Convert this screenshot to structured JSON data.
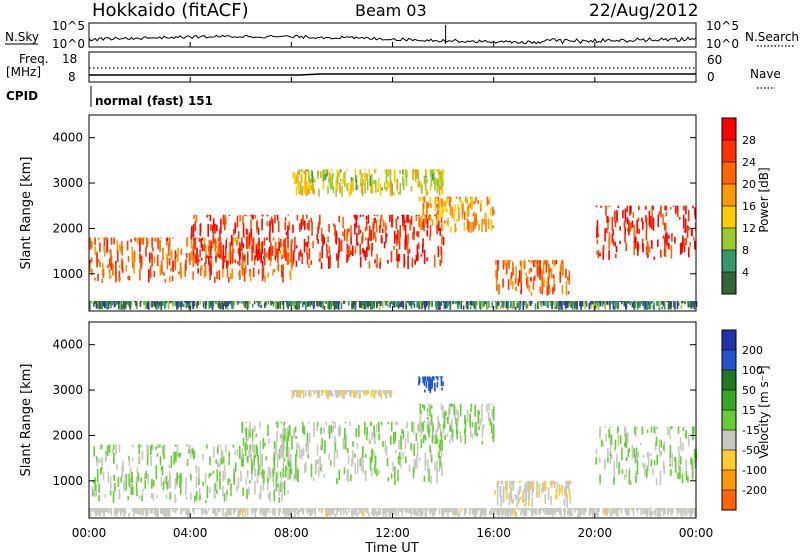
{
  "header": {
    "station": "Hokkaido (fitACF)",
    "beam": "Beam 03",
    "date": "22/Aug/2012"
  },
  "strips": {
    "nsky_label": "N.Sky",
    "nsky_ticks": [
      "10^5",
      "10^0"
    ],
    "nsearch_label": "N.Search",
    "nsearch_ticks": [
      "10^5",
      "10^0"
    ],
    "freq_label_1": "Freq.",
    "freq_label_2": "[MHz]",
    "freq_ticks": [
      "18",
      "8"
    ],
    "nave_label": "Nave",
    "nave_ticks": [
      "60",
      "0"
    ],
    "cpid_label": "CPID",
    "cpid_value": "normal (fast) 151"
  },
  "axes": {
    "xlabel": "Time UT",
    "ylabel_range": "Slant Range [km]",
    "x_ticks": [
      "00:00",
      "04:00",
      "08:00",
      "12:00",
      "16:00",
      "20:00",
      "00:00"
    ],
    "y_ticks": [
      "4000",
      "3000",
      "2000",
      "1000"
    ]
  },
  "colorbars": {
    "power_label": "Power [dB]",
    "power_ticks": [
      "28",
      "24",
      "20",
      "16",
      "12",
      "8",
      "4"
    ],
    "power_colors": [
      "#ff0000",
      "#ff3300",
      "#ff6600",
      "#ff9900",
      "#ffcc00",
      "#99cc33",
      "#339966",
      "#336633",
      "#3333aa",
      "#0000ff"
    ],
    "velocity_label": "Velocity [m s⁻¹]",
    "velocity_ticks": [
      "200",
      "100",
      "50",
      "15",
      "-15",
      "-50",
      "-100",
      "-200"
    ],
    "velocity_colors": [
      "#2233aa",
      "#2255cc",
      "#227722",
      "#33aa22",
      "#66cc33",
      "#c8c8c0",
      "#ffcc33",
      "#ff9900",
      "#ff6600",
      "#ff0000"
    ]
  },
  "chart_data": [
    {
      "type": "heatmap",
      "title": "Power",
      "x_range": [
        "00:00",
        "24:00"
      ],
      "ylim": [
        180,
        4500
      ],
      "colorbar_range": [
        0,
        30
      ],
      "echo_regions": [
        {
          "t_start": 0,
          "t_end": 8,
          "range_min": 800,
          "range_max": 1800,
          "power_db": 24
        },
        {
          "t_start": 4,
          "t_end": 14,
          "range_min": 1100,
          "range_max": 2300,
          "power_db": 28
        },
        {
          "t_start": 8,
          "t_end": 14,
          "range_min": 2700,
          "range_max": 3300,
          "power_db": 16
        },
        {
          "t_start": 13,
          "t_end": 16,
          "range_min": 1900,
          "range_max": 2700,
          "power_db": 20
        },
        {
          "t_start": 16,
          "t_end": 19,
          "range_min": 500,
          "range_max": 1300,
          "power_db": 24
        },
        {
          "t_start": 20,
          "t_end": 24,
          "range_min": 1300,
          "range_max": 2500,
          "power_db": 28
        },
        {
          "t_start": 0,
          "t_end": 24,
          "range_min": 200,
          "range_max": 400,
          "power_db": 8
        }
      ]
    },
    {
      "type": "heatmap",
      "title": "Velocity",
      "x_range": [
        "00:00",
        "24:00"
      ],
      "ylim": [
        180,
        4500
      ],
      "colorbar_range": [
        -200,
        200
      ],
      "echo_regions": [
        {
          "t_start": 0,
          "t_end": 8,
          "range_min": 500,
          "range_max": 1800,
          "velocity": 0
        },
        {
          "t_start": 6,
          "t_end": 14,
          "range_min": 900,
          "range_max": 2300,
          "velocity": 0
        },
        {
          "t_start": 13,
          "t_end": 16,
          "range_min": 1800,
          "range_max": 2700,
          "velocity": 0
        },
        {
          "t_start": 13,
          "t_end": 14,
          "range_min": 2900,
          "range_max": 3300,
          "velocity": 150
        },
        {
          "t_start": 8,
          "t_end": 12,
          "range_min": 2800,
          "range_max": 3000,
          "velocity": -40
        },
        {
          "t_start": 16,
          "t_end": 19,
          "range_min": 400,
          "range_max": 1000,
          "velocity": -40
        },
        {
          "t_start": 20,
          "t_end": 24,
          "range_min": 900,
          "range_max": 2200,
          "velocity": 0
        },
        {
          "t_start": 0,
          "t_end": 24,
          "range_min": 200,
          "range_max": 400,
          "velocity": -30
        }
      ]
    }
  ]
}
